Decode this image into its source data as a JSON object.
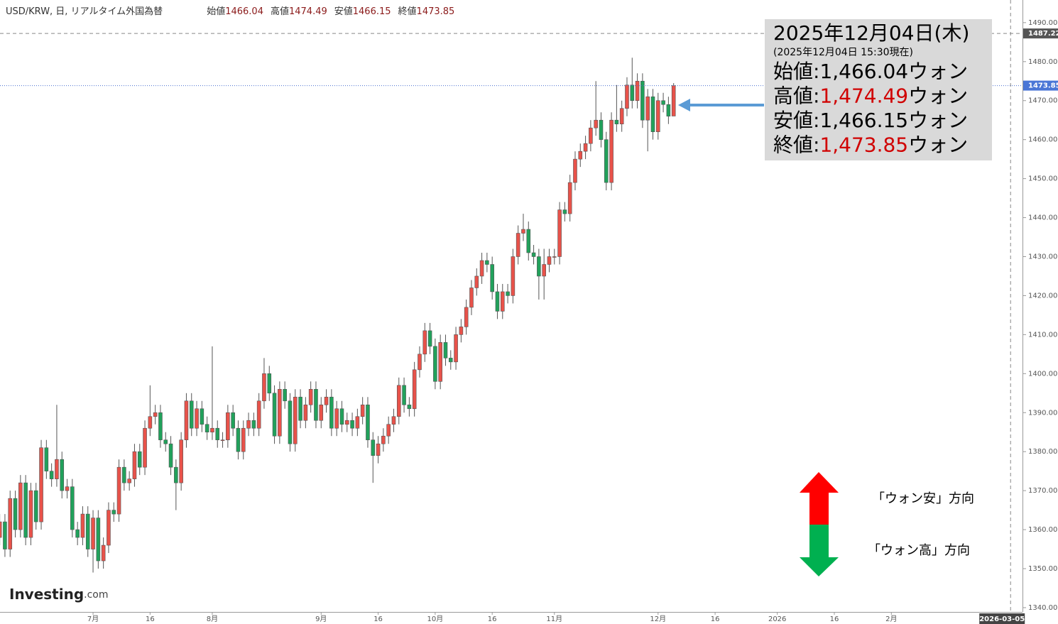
{
  "chart_data": {
    "type": "candlestick",
    "title": "USD/KRW, 日, リアルタイム外国為替",
    "ohlc_labels": [
      "始値",
      "高値",
      "安値",
      "終値"
    ],
    "up_color": "#e8524a",
    "down_color": "#21a15b",
    "grid": false,
    "open": [
      1358,
      1362,
      1355,
      1368,
      1360,
      1372,
      1358,
      1370,
      1362,
      1381,
      1375,
      1373,
      1378,
      1370,
      1371,
      1360,
      1358,
      1364,
      1355,
      1363,
      1352,
      1356,
      1365,
      1364,
      1376,
      1372,
      1373,
      1380,
      1376,
      1386,
      1389,
      1390,
      1383,
      1382,
      1376,
      1372,
      1383,
      1393,
      1386,
      1391,
      1387,
      1385,
      1386,
      1383,
      1383,
      1390,
      1386,
      1380,
      1386,
      1388,
      1386,
      1393,
      1400,
      1395,
      1384,
      1396,
      1393,
      1382,
      1394,
      1388,
      1392,
      1396,
      1388,
      1392,
      1394,
      1386,
      1391,
      1387,
      1388,
      1386,
      1389,
      1392,
      1383,
      1379,
      1382,
      1384,
      1387,
      1389,
      1397,
      1392,
      1391,
      1401,
      1405,
      1411,
      1407,
      1398,
      1408,
      1404,
      1403,
      1410,
      1412,
      1417,
      1422,
      1425,
      1429,
      1428,
      1421,
      1416,
      1421,
      1420,
      1430,
      1436,
      1437,
      1431,
      1430,
      1425,
      1428,
      1430,
      1430,
      1442,
      1441,
      1449,
      1455,
      1457,
      1459,
      1463,
      1465,
      1460,
      1449,
      1465,
      1464,
      1468,
      1474,
      1470,
      1475,
      1465,
      1471,
      1462,
      1470,
      1469,
      1466.04
    ],
    "high": [
      1364,
      1364,
      1370,
      1370,
      1374,
      1374,
      1372,
      1372,
      1383,
      1383,
      1377,
      1392,
      1380,
      1373,
      1373,
      1362,
      1366,
      1366,
      1365,
      1365,
      1358,
      1367,
      1367,
      1378,
      1378,
      1375,
      1382,
      1382,
      1388,
      1397,
      1392,
      1392,
      1385,
      1384,
      1378,
      1385,
      1395,
      1395,
      1393,
      1393,
      1389,
      1407,
      1388,
      1385,
      1392,
      1392,
      1388,
      1388,
      1390,
      1390,
      1395,
      1404,
      1402,
      1397,
      1398,
      1398,
      1395,
      1396,
      1396,
      1394,
      1398,
      1398,
      1394,
      1396,
      1396,
      1393,
      1393,
      1390,
      1390,
      1391,
      1394,
      1394,
      1385,
      1384,
      1386,
      1389,
      1391,
      1399,
      1399,
      1394,
      1403,
      1407,
      1413,
      1413,
      1409,
      1410,
      1410,
      1406,
      1412,
      1414,
      1419,
      1424,
      1427,
      1431,
      1431,
      1430,
      1423,
      1423,
      1423,
      1432,
      1438,
      1441,
      1439,
      1433,
      1432,
      1432,
      1432,
      1432,
      1444,
      1444,
      1451,
      1457,
      1459,
      1461,
      1465,
      1475,
      1467,
      1462,
      1467,
      1474,
      1470,
      1476,
      1481,
      1477,
      1477,
      1473,
      1473,
      1472,
      1472,
      1471,
      1474.49
    ],
    "low": [
      1356,
      1353,
      1353,
      1358,
      1358,
      1356,
      1356,
      1360,
      1360,
      1373,
      1371,
      1371,
      1368,
      1368,
      1358,
      1356,
      1356,
      1353,
      1349,
      1350,
      1350,
      1354,
      1362,
      1362,
      1370,
      1370,
      1371,
      1374,
      1374,
      1384,
      1387,
      1381,
      1380,
      1374,
      1365,
      1370,
      1381,
      1384,
      1384,
      1385,
      1383,
      1383,
      1381,
      1381,
      1381,
      1384,
      1378,
      1378,
      1384,
      1384,
      1384,
      1391,
      1393,
      1382,
      1382,
      1391,
      1380,
      1380,
      1386,
      1386,
      1390,
      1386,
      1386,
      1390,
      1384,
      1384,
      1385,
      1385,
      1384,
      1384,
      1387,
      1381,
      1372,
      1377,
      1380,
      1382,
      1385,
      1387,
      1390,
      1389,
      1389,
      1399,
      1403,
      1405,
      1396,
      1396,
      1402,
      1401,
      1401,
      1408,
      1410,
      1415,
      1420,
      1423,
      1426,
      1419,
      1414,
      1414,
      1418,
      1418,
      1428,
      1434,
      1429,
      1428,
      1419,
      1419,
      1426,
      1428,
      1428,
      1439,
      1439,
      1447,
      1453,
      1455,
      1457,
      1461,
      1458,
      1447,
      1447,
      1462,
      1462,
      1466,
      1468,
      1468,
      1463,
      1457,
      1460,
      1460,
      1467,
      1464,
      1466.15
    ],
    "close": [
      1362,
      1355,
      1368,
      1360,
      1372,
      1358,
      1370,
      1362,
      1381,
      1375,
      1373,
      1378,
      1370,
      1371,
      1360,
      1358,
      1364,
      1355,
      1363,
      1352,
      1356,
      1365,
      1364,
      1376,
      1372,
      1373,
      1380,
      1376,
      1386,
      1389,
      1390,
      1383,
      1382,
      1376,
      1372,
      1383,
      1393,
      1386,
      1391,
      1387,
      1385,
      1386,
      1383,
      1383,
      1390,
      1386,
      1380,
      1386,
      1388,
      1386,
      1393,
      1400,
      1395,
      1384,
      1396,
      1393,
      1382,
      1394,
      1388,
      1392,
      1396,
      1388,
      1392,
      1394,
      1386,
      1391,
      1387,
      1388,
      1386,
      1389,
      1392,
      1383,
      1379,
      1382,
      1384,
      1387,
      1389,
      1397,
      1392,
      1391,
      1401,
      1405,
      1411,
      1407,
      1398,
      1408,
      1404,
      1403,
      1410,
      1412,
      1417,
      1422,
      1425,
      1429,
      1428,
      1421,
      1416,
      1421,
      1420,
      1430,
      1436,
      1437,
      1431,
      1430,
      1425,
      1428,
      1430,
      1430,
      1442,
      1441,
      1449,
      1455,
      1457,
      1459,
      1463,
      1465,
      1460,
      1449,
      1465,
      1464,
      1468,
      1474,
      1470,
      1475,
      1465,
      1471,
      1462,
      1470,
      1469,
      1466,
      1473.85
    ],
    "xlim": [
      0.05,
      197.3
    ],
    "xticks": [
      {
        "value": 18,
        "label": "7月"
      },
      {
        "value": 29,
        "label": "16"
      },
      {
        "value": 41,
        "label": "8月"
      },
      {
        "value": 62,
        "label": "9月"
      },
      {
        "value": 73,
        "label": "16"
      },
      {
        "value": 84,
        "label": "10月"
      },
      {
        "value": 95,
        "label": "16"
      },
      {
        "value": 107,
        "label": "11月"
      },
      {
        "value": 127,
        "label": "12月"
      },
      {
        "value": 138,
        "label": "16"
      },
      {
        "value": 150,
        "label": "2026"
      },
      {
        "value": 161,
        "label": "16"
      },
      {
        "value": 172,
        "label": "2月"
      }
    ],
    "ylim": [
      1338.9,
      1495.8
    ],
    "yticks": [
      {
        "value": 1340,
        "label": "1340.00"
      },
      {
        "value": 1350,
        "label": "1350.00"
      },
      {
        "value": 1360,
        "label": "1360.00"
      },
      {
        "value": 1370,
        "label": "1370.00"
      },
      {
        "value": 1380,
        "label": "1380.00"
      },
      {
        "value": 1390,
        "label": "1390.00"
      },
      {
        "value": 1400,
        "label": "1400.00"
      },
      {
        "value": 1410,
        "label": "1410.00"
      },
      {
        "value": 1420,
        "label": "1420.00"
      },
      {
        "value": 1430,
        "label": "1430.00"
      },
      {
        "value": 1440,
        "label": "1440.00"
      },
      {
        "value": 1450,
        "label": "1450.00"
      },
      {
        "value": 1460,
        "label": "1460.00"
      },
      {
        "value": 1470,
        "label": "1470.00"
      },
      {
        "value": 1480,
        "label": "1480.00"
      },
      {
        "value": 1490,
        "label": "1490.00"
      }
    ],
    "crosshair": {
      "x": {
        "value": 195,
        "label": "2026-03-05"
      },
      "y": 1487.22
    },
    "info_box": {
      "date": "2025年12月04日(木)",
      "timestamp": "(2025年12月04日 15:30現在)",
      "rows": [
        {
          "label": "始値:",
          "value": "1,466.04",
          "unit": "ウォン",
          "color": "#000000"
        },
        {
          "label": "高値:",
          "value": "1,474.49",
          "unit": "ウォン",
          "color": "#d00000"
        },
        {
          "label": "安値:",
          "value": "1,466.15",
          "unit": "ウォン",
          "color": "#000000"
        },
        {
          "label": "終値:",
          "value": "1,473.85",
          "unit": "ウォン",
          "color": "#d00000"
        }
      ]
    },
    "annotations": [
      "「ウォン安」方向",
      "「ウォン高」方向"
    ],
    "source_logo": {
      "name": "Investing",
      "suffix": ".com"
    }
  }
}
